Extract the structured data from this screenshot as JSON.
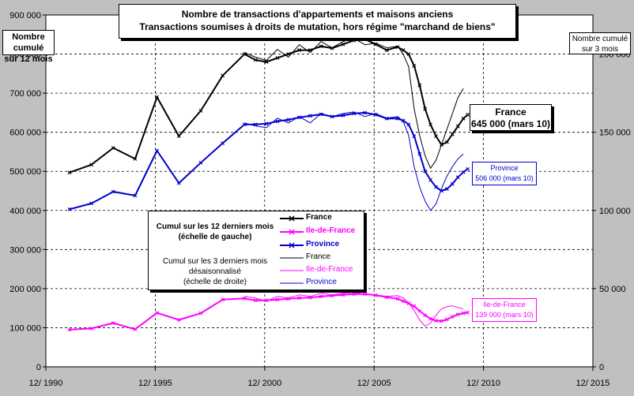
{
  "title_lines": [
    "Nombre de transactions d'appartements et maisons anciens",
    "Transactions soumises à droits de mutation, hors régime \"marchand de biens\""
  ],
  "left_axis_title": [
    "Nombre cumulé",
    "sur 12 mois"
  ],
  "right_axis_title": [
    "Nombre cumulé",
    "sur 3 mois"
  ],
  "legend": {
    "group1_title": [
      "Cumul sur les 12 derniers mois",
      "(échelle de gauche)"
    ],
    "group2_title": [
      "Cumul sur les 3 derniers mois",
      "désaisonnalisé",
      "(échelle de droite)"
    ],
    "items": [
      {
        "label": "France",
        "color": "#000000",
        "style": "thick-marker"
      },
      {
        "label": "Ile-de-France",
        "color": "#ff00ff",
        "style": "thick-marker"
      },
      {
        "label": "Province",
        "color": "#0000cc",
        "style": "thick-marker"
      },
      {
        "label": "France",
        "color": "#000000",
        "style": "thin"
      },
      {
        "label": "Ile-de-France",
        "color": "#ff00ff",
        "style": "thin"
      },
      {
        "label": "Province",
        "color": "#0000cc",
        "style": "thin"
      }
    ]
  },
  "annotations": {
    "france": [
      "France",
      "645 000 (mars 10)"
    ],
    "province": [
      "Province",
      "506 000 (mars 10)"
    ],
    "idf": [
      "Ile-de-France",
      "139 000 (mars 10)"
    ]
  },
  "chart_data": {
    "type": "line",
    "x_tick_labels": [
      "12/ 1990",
      "12/ 1995",
      "12/ 2000",
      "12/ 2005",
      "12/ 2010",
      "12/ 2015"
    ],
    "xlim": [
      1990.92,
      2015.92
    ],
    "left_axis": {
      "ylim": [
        0,
        900000
      ],
      "ticks": [
        "0",
        "100 000",
        "200 000",
        "300 000",
        "400 000",
        "500 000",
        "600 000",
        "700 000",
        "800 000",
        "900 000"
      ]
    },
    "right_axis": {
      "ylim": [
        0,
        225000
      ],
      "ticks": [
        "0",
        "50 000",
        "100 000",
        "150 000",
        "200 000"
      ]
    },
    "series": [
      {
        "name": "France",
        "axis": "left",
        "color": "#000000",
        "style": "thick-marker",
        "x": [
          1992.0,
          1993.0,
          1994.0,
          1995.0,
          1996.0,
          1997.0,
          1998.0,
          1999.0,
          2000.0,
          2000.5,
          2001.0,
          2001.5,
          2002.0,
          2002.5,
          2003.0,
          2003.5,
          2004.0,
          2004.5,
          2005.0,
          2005.5,
          2006.0,
          2006.5,
          2007.0,
          2007.25,
          2007.5,
          2007.75,
          2008.0,
          2008.25,
          2008.5,
          2008.75,
          2009.0,
          2009.25,
          2009.5,
          2009.75,
          2010.0,
          2010.2
        ],
        "values": [
          497000,
          517000,
          560000,
          532000,
          690000,
          590000,
          655000,
          745000,
          800000,
          785000,
          780000,
          790000,
          800000,
          810000,
          810000,
          820000,
          815000,
          825000,
          835000,
          838000,
          825000,
          810000,
          818000,
          810000,
          800000,
          770000,
          720000,
          660000,
          620000,
          590000,
          568000,
          575000,
          595000,
          615000,
          635000,
          645000
        ]
      },
      {
        "name": "Province",
        "axis": "left",
        "color": "#0000cc",
        "style": "thick-marker",
        "x": [
          1992.0,
          1993.0,
          1994.0,
          1995.0,
          1996.0,
          1997.0,
          1998.0,
          1999.0,
          2000.0,
          2000.5,
          2001.0,
          2001.5,
          2002.0,
          2002.5,
          2003.0,
          2003.5,
          2004.0,
          2004.5,
          2005.0,
          2005.5,
          2006.0,
          2006.5,
          2007.0,
          2007.25,
          2007.5,
          2007.75,
          2008.0,
          2008.25,
          2008.5,
          2008.75,
          2009.0,
          2009.25,
          2009.5,
          2009.75,
          2010.0,
          2010.2
        ],
        "values": [
          403000,
          418000,
          448000,
          438000,
          553000,
          470000,
          522000,
          572000,
          620000,
          620000,
          622000,
          628000,
          632000,
          638000,
          642000,
          646000,
          640000,
          643000,
          648000,
          650000,
          645000,
          635000,
          635000,
          630000,
          620000,
          590000,
          545000,
          500000,
          478000,
          460000,
          450000,
          455000,
          468000,
          485000,
          498000,
          506000
        ]
      },
      {
        "name": "Ile-de-France",
        "axis": "left",
        "color": "#ff00ff",
        "style": "thick-marker",
        "x": [
          1992.0,
          1993.0,
          1994.0,
          1995.0,
          1996.0,
          1997.0,
          1998.0,
          1999.0,
          2000.0,
          2000.5,
          2001.0,
          2001.5,
          2002.0,
          2002.5,
          2003.0,
          2003.5,
          2004.0,
          2004.5,
          2005.0,
          2005.5,
          2006.0,
          2006.5,
          2007.0,
          2007.25,
          2007.5,
          2007.75,
          2008.0,
          2008.25,
          2008.5,
          2008.75,
          2009.0,
          2009.25,
          2009.5,
          2009.75,
          2010.0,
          2010.2
        ],
        "values": [
          95000,
          98000,
          112000,
          96000,
          138000,
          120000,
          137000,
          172000,
          175000,
          170000,
          170000,
          172000,
          174000,
          176000,
          177000,
          180000,
          182000,
          184000,
          186000,
          186000,
          183000,
          178000,
          174000,
          168000,
          162000,
          155000,
          143000,
          132000,
          123000,
          118000,
          117000,
          121000,
          128000,
          134000,
          137000,
          139000
        ]
      },
      {
        "name": "France",
        "axis": "right",
        "color": "#000000",
        "style": "thin",
        "x": [
          2000.0,
          2000.5,
          2001.0,
          2001.5,
          2002.0,
          2002.5,
          2003.0,
          2003.5,
          2004.0,
          2004.5,
          2005.0,
          2005.5,
          2006.0,
          2006.5,
          2007.0,
          2007.25,
          2007.5,
          2007.75,
          2008.0,
          2008.25,
          2008.5,
          2008.75,
          2009.0,
          2009.25,
          2009.5,
          2009.75,
          2010.0
        ],
        "values": [
          201000,
          198000,
          196000,
          203000,
          198000,
          206000,
          201000,
          208000,
          204000,
          208000,
          210000,
          206000,
          207000,
          204000,
          205000,
          200000,
          192000,
          165000,
          148000,
          135000,
          127000,
          132000,
          142000,
          152000,
          162000,
          172000,
          178000
        ]
      },
      {
        "name": "Province",
        "axis": "right",
        "color": "#0000cc",
        "style": "thin",
        "x": [
          2000.0,
          2000.5,
          2001.0,
          2001.5,
          2002.0,
          2002.5,
          2003.0,
          2003.5,
          2004.0,
          2004.5,
          2005.0,
          2005.5,
          2006.0,
          2006.5,
          2007.0,
          2007.25,
          2007.5,
          2007.75,
          2008.0,
          2008.25,
          2008.5,
          2008.75,
          2009.0,
          2009.25,
          2009.5,
          2009.75,
          2010.0
        ],
        "values": [
          156000,
          154000,
          153000,
          159000,
          156000,
          160000,
          156000,
          162000,
          160000,
          162000,
          163000,
          160000,
          162000,
          159000,
          160000,
          157000,
          148000,
          128000,
          115000,
          106000,
          100000,
          104000,
          114000,
          122000,
          128000,
          133000,
          136000
        ]
      },
      {
        "name": "Ile-de-France",
        "axis": "right",
        "color": "#ff00ff",
        "style": "thin",
        "x": [
          2000.0,
          2000.5,
          2001.0,
          2001.5,
          2002.0,
          2002.5,
          2003.0,
          2003.5,
          2004.0,
          2004.5,
          2005.0,
          2005.5,
          2006.0,
          2006.5,
          2007.0,
          2007.25,
          2007.5,
          2007.75,
          2008.0,
          2008.25,
          2008.5,
          2008.75,
          2009.0,
          2009.25,
          2009.5,
          2009.75,
          2010.0
        ],
        "values": [
          45000,
          44000,
          42000,
          45000,
          44000,
          46000,
          45000,
          47000,
          46000,
          47000,
          47500,
          46500,
          46000,
          45000,
          45500,
          44000,
          41000,
          36000,
          30000,
          26000,
          28000,
          33000,
          37000,
          38500,
          39000,
          38000,
          37000
        ]
      }
    ]
  }
}
